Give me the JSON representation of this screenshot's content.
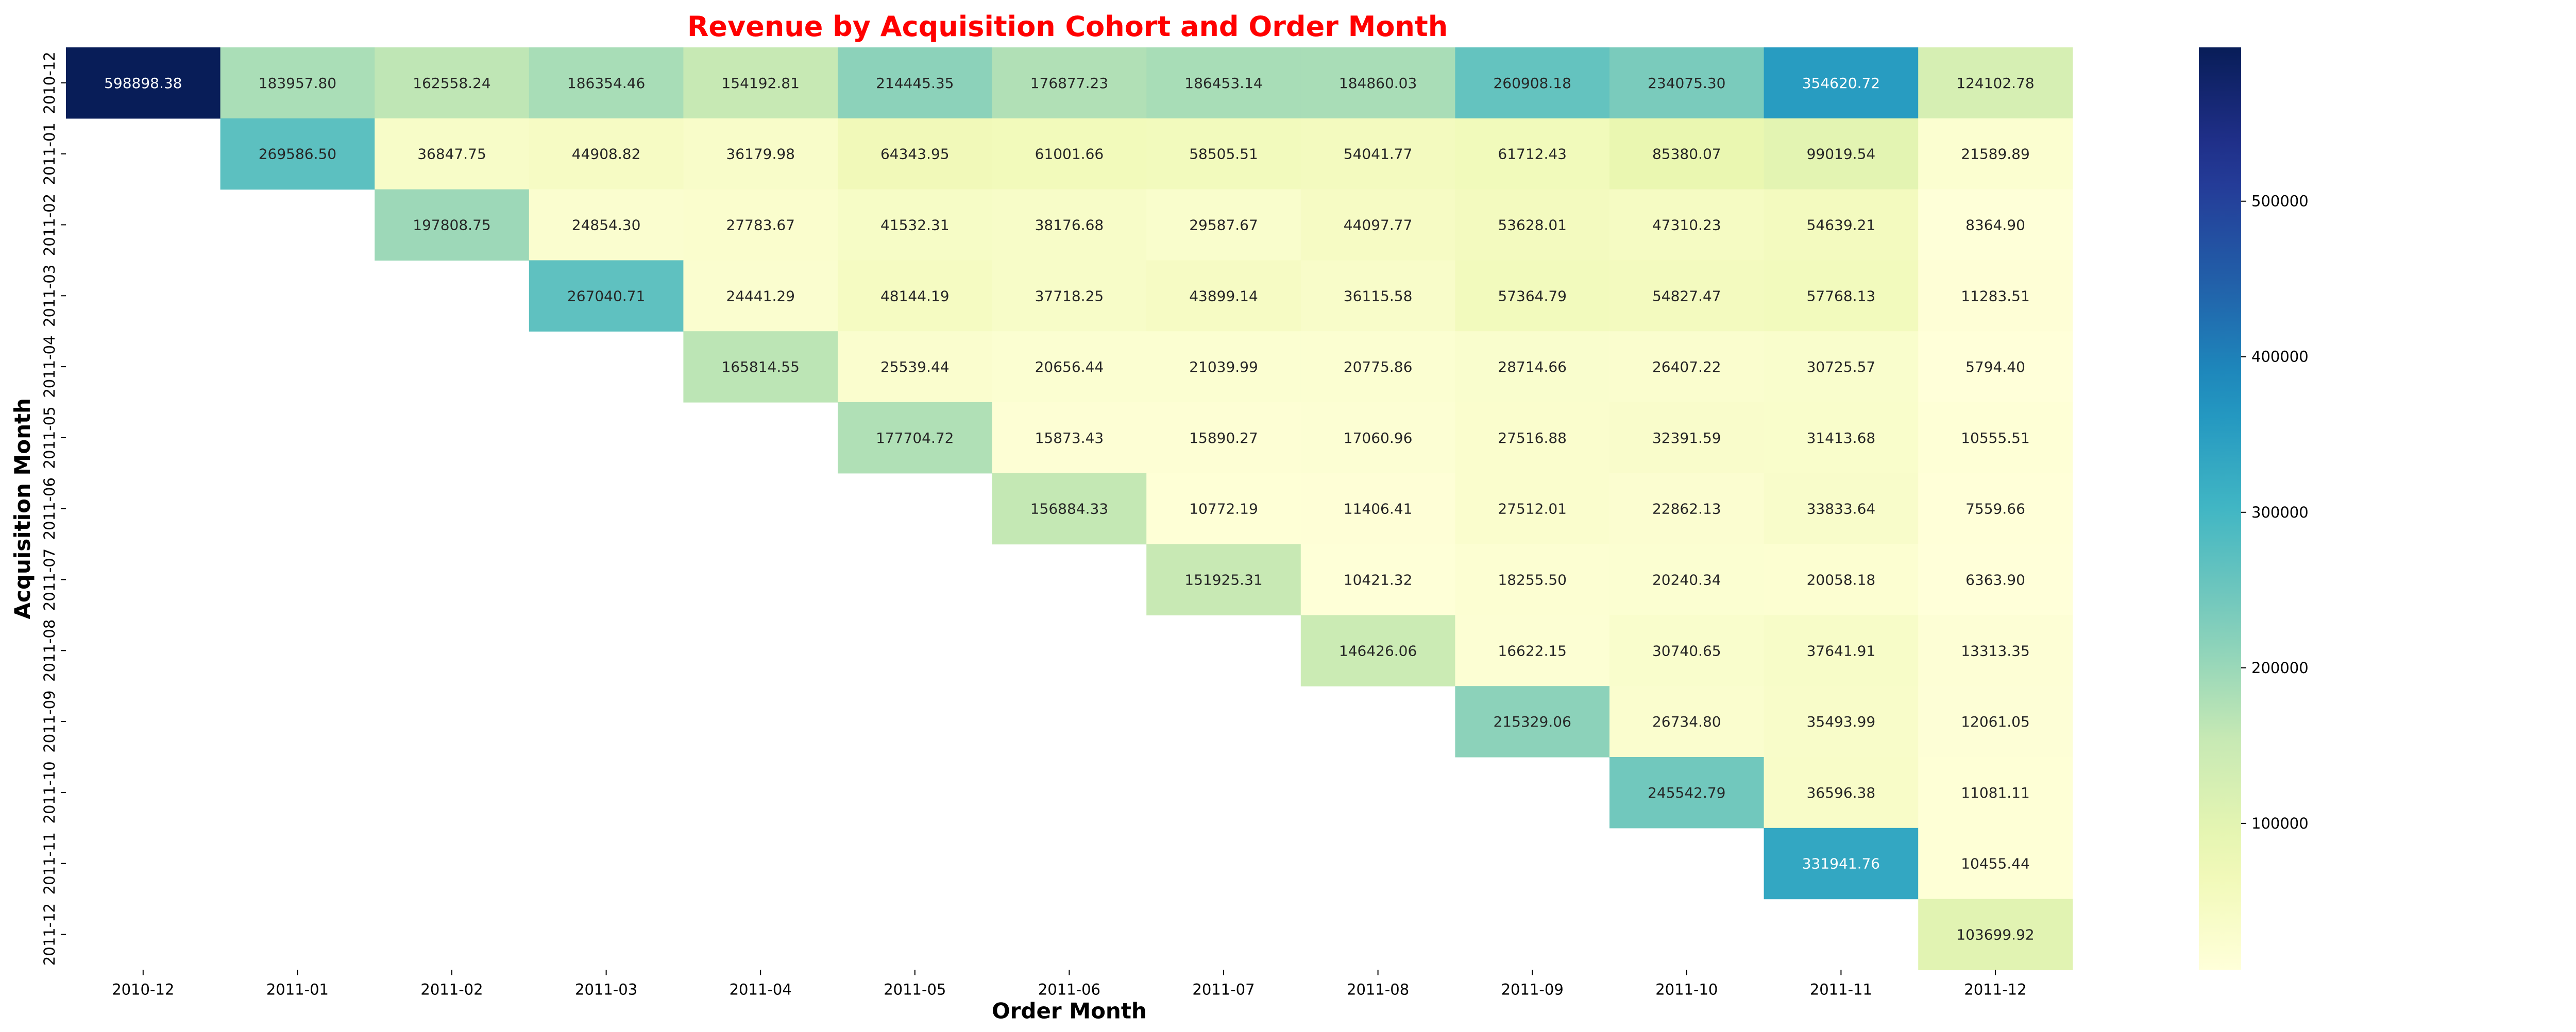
{
  "chart_data": {
    "type": "heatmap",
    "title": "Revenue by Acquisition Cohort and Order Month",
    "xlabel": "Order Month",
    "ylabel": "Acquisition Month",
    "colormap": "YlGnBu",
    "title_color": "#ff0000",
    "x": [
      "2010-12",
      "2011-01",
      "2011-02",
      "2011-03",
      "2011-04",
      "2011-05",
      "2011-06",
      "2011-07",
      "2011-08",
      "2011-09",
      "2011-10",
      "2011-11",
      "2011-12"
    ],
    "y": [
      "2010-12",
      "2011-01",
      "2011-02",
      "2011-03",
      "2011-04",
      "2011-05",
      "2011-06",
      "2011-07",
      "2011-08",
      "2011-09",
      "2011-10",
      "2011-11",
      "2011-12"
    ],
    "z": [
      [
        598898.38,
        183957.8,
        162558.24,
        186354.46,
        154192.81,
        214445.35,
        176877.23,
        186453.14,
        184860.03,
        260908.18,
        234075.3,
        354620.72,
        124102.78
      ],
      [
        null,
        269586.5,
        36847.75,
        44908.82,
        36179.98,
        64343.95,
        61001.66,
        58505.51,
        54041.77,
        61712.43,
        85380.07,
        99019.54,
        21589.89
      ],
      [
        null,
        null,
        197808.75,
        24854.3,
        27783.67,
        41532.31,
        38176.68,
        29587.67,
        44097.77,
        53628.01,
        47310.23,
        54639.21,
        8364.9
      ],
      [
        null,
        null,
        null,
        267040.71,
        24441.29,
        48144.19,
        37718.25,
        43899.14,
        36115.58,
        57364.79,
        54827.47,
        57768.13,
        11283.51
      ],
      [
        null,
        null,
        null,
        null,
        165814.55,
        25539.44,
        20656.44,
        21039.99,
        20775.86,
        28714.66,
        26407.22,
        30725.57,
        5794.4
      ],
      [
        null,
        null,
        null,
        null,
        null,
        177704.72,
        15873.43,
        15890.27,
        17060.96,
        27516.88,
        32391.59,
        31413.68,
        10555.51
      ],
      [
        null,
        null,
        null,
        null,
        null,
        null,
        156884.33,
        10772.19,
        11406.41,
        27512.01,
        22862.13,
        33833.64,
        7559.66
      ],
      [
        null,
        null,
        null,
        null,
        null,
        null,
        null,
        151925.31,
        10421.32,
        18255.5,
        20240.34,
        20058.18,
        6363.9
      ],
      [
        null,
        null,
        null,
        null,
        null,
        null,
        null,
        null,
        146426.06,
        16622.15,
        30740.65,
        37641.91,
        13313.35
      ],
      [
        null,
        null,
        null,
        null,
        null,
        null,
        null,
        null,
        null,
        215329.06,
        26734.8,
        35493.99,
        12061.05
      ],
      [
        null,
        null,
        null,
        null,
        null,
        null,
        null,
        null,
        null,
        null,
        245542.79,
        36596.38,
        11081.11
      ],
      [
        null,
        null,
        null,
        null,
        null,
        null,
        null,
        null,
        null,
        null,
        null,
        331941.76,
        10455.44
      ],
      [
        null,
        null,
        null,
        null,
        null,
        null,
        null,
        null,
        null,
        null,
        null,
        null,
        103699.92
      ]
    ],
    "colorbar": {
      "range": [
        5794.4,
        598898.38
      ],
      "ticks": [
        100000,
        200000,
        300000,
        400000,
        500000
      ]
    }
  }
}
